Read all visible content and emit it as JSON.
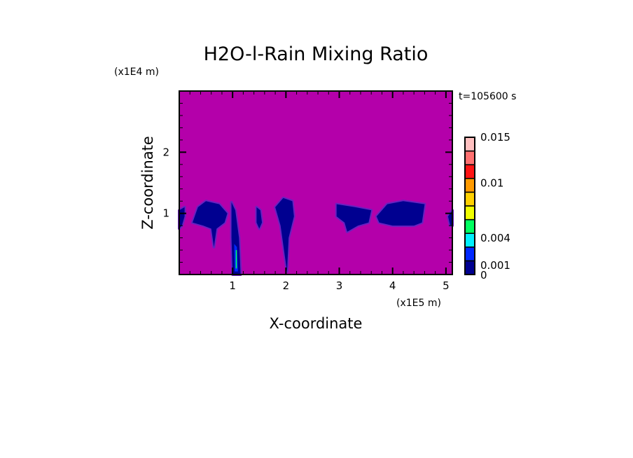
{
  "chart_data": {
    "type": "heatmap",
    "title": "H2O-l-Rain Mixing Ratio",
    "xlabel": "X-coordinate",
    "ylabel": "Z-coordinate",
    "x_scale_label": "(x1E5 m)",
    "y_scale_label": "(x1E4 m)",
    "time_label": "t=105600 s",
    "xlim": [
      0,
      5.12
    ],
    "ylim": [
      0,
      3
    ],
    "x_ticks": [
      1,
      2,
      3,
      4,
      5
    ],
    "y_ticks": [
      1,
      2
    ],
    "background_color": "#B400AA",
    "colorbar": {
      "tick_labels": [
        {
          "label": "0.015",
          "value": 0.015
        },
        {
          "label": "0.01",
          "value": 0.01
        },
        {
          "label": "0.004",
          "value": 0.004
        },
        {
          "label": "0.001",
          "value": 0.001
        },
        {
          "label": "0",
          "value": 0
        }
      ],
      "colors": [
        "#000090",
        "#0028FF",
        "#00F0FF",
        "#00FF60",
        "#F0FF00",
        "#FFD000",
        "#FF9A00",
        "#FF1414",
        "#FF7070",
        "#FFC0C0"
      ],
      "range": [
        0,
        0.015
      ]
    },
    "features": [
      {
        "name": "rain-region",
        "level": 0,
        "points": [
          [
            0,
            0.75
          ],
          [
            0.05,
            0.8
          ],
          [
            0.1,
            0.95
          ],
          [
            0.1,
            1.1
          ],
          [
            0,
            1.05
          ]
        ]
      },
      {
        "name": "rain-region",
        "level": 0,
        "points": [
          [
            0.25,
            0.85
          ],
          [
            0.35,
            1.1
          ],
          [
            0.5,
            1.2
          ],
          [
            0.75,
            1.15
          ],
          [
            0.9,
            1.0
          ],
          [
            0.85,
            0.85
          ],
          [
            0.7,
            0.75
          ],
          [
            0.65,
            0.45
          ],
          [
            0.6,
            0.75
          ],
          [
            0.45,
            0.8
          ]
        ]
      },
      {
        "name": "rain-region",
        "level": 0,
        "points": [
          [
            0.98,
            1.18
          ],
          [
            1.05,
            1.05
          ],
          [
            1.12,
            0.6
          ],
          [
            1.15,
            0
          ],
          [
            1.0,
            0
          ],
          [
            0.98,
            0.6
          ]
        ]
      },
      {
        "name": "rain-region",
        "level": 0,
        "points": [
          [
            1.45,
            1.1
          ],
          [
            1.52,
            1.05
          ],
          [
            1.55,
            0.85
          ],
          [
            1.5,
            0.75
          ],
          [
            1.45,
            0.85
          ]
        ]
      },
      {
        "name": "rain-region",
        "level": 0,
        "points": [
          [
            1.8,
            1.1
          ],
          [
            1.95,
            1.25
          ],
          [
            2.12,
            1.2
          ],
          [
            2.15,
            0.95
          ],
          [
            2.05,
            0.6
          ],
          [
            2.02,
            0.05
          ],
          [
            1.98,
            0.3
          ],
          [
            1.9,
            0.8
          ]
        ]
      },
      {
        "name": "rain-region",
        "level": 0,
        "points": [
          [
            2.95,
            1.15
          ],
          [
            3.3,
            1.1
          ],
          [
            3.6,
            1.05
          ],
          [
            3.55,
            0.85
          ],
          [
            3.35,
            0.8
          ],
          [
            3.15,
            0.7
          ],
          [
            3.1,
            0.85
          ],
          [
            2.95,
            0.95
          ]
        ]
      },
      {
        "name": "rain-region",
        "level": 0,
        "points": [
          [
            3.7,
            0.95
          ],
          [
            3.9,
            1.15
          ],
          [
            4.2,
            1.2
          ],
          [
            4.6,
            1.15
          ],
          [
            4.55,
            0.85
          ],
          [
            4.4,
            0.8
          ],
          [
            4.0,
            0.8
          ],
          [
            3.75,
            0.85
          ]
        ]
      },
      {
        "name": "rain-region",
        "level": 0,
        "points": [
          [
            5.04,
            0.95
          ],
          [
            5.12,
            1.05
          ],
          [
            5.12,
            0.8
          ],
          [
            5.08,
            0.8
          ]
        ]
      },
      {
        "name": "rain-core",
        "level": 1,
        "points": [
          [
            1.03,
            0.5
          ],
          [
            1.08,
            0.45
          ],
          [
            1.1,
            0.05
          ],
          [
            1.04,
            0.05
          ]
        ]
      },
      {
        "name": "rain-core",
        "level": 3,
        "points": [
          [
            1.06,
            0.4
          ],
          [
            1.08,
            0.4
          ],
          [
            1.08,
            0.1
          ],
          [
            1.06,
            0.1
          ]
        ]
      }
    ]
  }
}
